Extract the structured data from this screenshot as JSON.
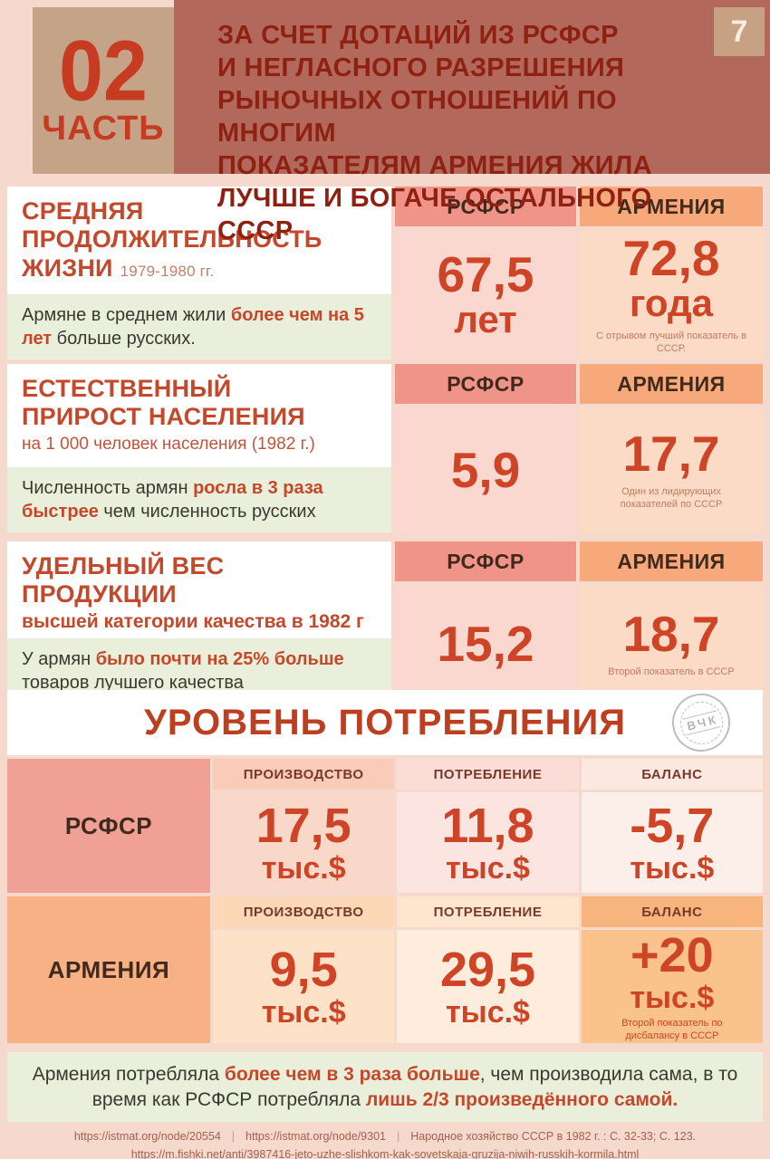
{
  "colors": {
    "page_bg": "#f4d9cc",
    "header_bg": "#b2695c",
    "header_text": "#8e2112",
    "tan_block": "#c5a387",
    "accent_red": "#c64729",
    "value_red": "#ce4426",
    "note_bg": "#e9efda",
    "rsfsr_header_bg": "#f0948a",
    "armenia_header_bg": "#f7a97c"
  },
  "header": {
    "part_number": "02",
    "part_label": "ЧАСТЬ",
    "page_number": "7",
    "title_lines": [
      "ЗА СЧЕТ ДОТАЦИЙ ИЗ РСФСР",
      "И НЕГЛАСНОГО РАЗРЕШЕНИЯ",
      "РЫНОЧНЫХ ОТНОШЕНИЙ ПО МНОГИМ",
      "ПОКАЗАТЕЛЯМ АРМЕНИЯ ЖИЛА",
      "ЛУЧШЕ И БОГАЧЕ ОСТАЛЬНОГО СССР"
    ]
  },
  "sections": [
    {
      "title_lines": [
        "СРЕДНЯЯ",
        "ПРОДОЛЖИТЕЛЬНОСТЬ",
        "ЖИЗНИ"
      ],
      "subtitle": "1979-1980 гг.",
      "note": [
        {
          "t": "Армяне в среднем жили ",
          "b": false
        },
        {
          "t": "более чем на 5 лет",
          "b": true
        },
        {
          "t": " больше русских.",
          "b": false
        }
      ],
      "rsfsr_label": "РСФСР",
      "armenia_label": "АРМЕНИЯ",
      "rsfsr_value": "67,5",
      "rsfsr_unit": "лет",
      "armenia_value": "72,8",
      "armenia_unit": "года",
      "armenia_caption": "С отрывом лучший показатель в СССР."
    },
    {
      "title_lines": [
        "ЕСТЕСТВЕННЫЙ",
        "ПРИРОСТ НАСЕЛЕНИЯ"
      ],
      "subtitle": "на 1 000 человек населения (1982 г.)",
      "note": [
        {
          "t": "Численность армян ",
          "b": false
        },
        {
          "t": "росла в 3 раза быстрее",
          "b": true
        },
        {
          "t": " чем численность русских",
          "b": false
        }
      ],
      "rsfsr_label": "РСФСР",
      "armenia_label": "АРМЕНИЯ",
      "rsfsr_value": "5,9",
      "armenia_value": "17,7",
      "armenia_caption": "Один из лидирующих показателей по СССР"
    },
    {
      "title_lines": [
        "УДЕЛЬНЫЙ ВЕС ПРОДУКЦИИ"
      ],
      "subtitle": "высшей категории качества в 1982 г",
      "note": [
        {
          "t": "У армян ",
          "b": false
        },
        {
          "t": "было почти на 25% больше",
          "b": true
        },
        {
          "t": " товаров лучшего качества",
          "b": false
        }
      ],
      "rsfsr_label": "РСФСР",
      "armenia_label": "АРМЕНИЯ",
      "rsfsr_value": "15,2",
      "armenia_value": "18,7",
      "armenia_caption": "Второй показатель в СССР"
    }
  ],
  "consumption": {
    "title": "УРОВЕНЬ ПОТРЕБЛЕНИЯ",
    "stamp_text": "ВЧК",
    "col_headers": [
      "ПРОИЗВОДСТВО",
      "ПОТРЕБЛЕНИЕ",
      "БАЛАНС"
    ],
    "rows": [
      {
        "label": "РСФСР",
        "values": [
          "17,5",
          "11,8",
          "-5,7"
        ],
        "unit": "тыс.$"
      },
      {
        "label": "АРМЕНИЯ",
        "values": [
          "9,5",
          "29,5",
          "+20"
        ],
        "unit": "тыс.$",
        "caption": "Второй показатель по дисбалансу в СССР"
      }
    ]
  },
  "bottom_note": [
    {
      "t": "Армения потребляла ",
      "b": false
    },
    {
      "t": "более чем в 3 раза больше",
      "b": true
    },
    {
      "t": ", чем производила сама, в то время как РСФСР потребляла ",
      "b": false
    },
    {
      "t": "лишь 2/3 произведённого самой.",
      "b": true
    }
  ],
  "footer": {
    "link1": "https://istmat.org/node/20554",
    "link2": "https://istmat.org/node/9301",
    "sep": "|",
    "source": "Народное хозяйство СССР в 1982 г. : С. 32-33; С. 123.",
    "link3": "https://m.fishki.net/anti/3987416-jeto-uzhe-slishkom-kak-sovetskaja-gruzija-niwih-russkih-kormila.html"
  },
  "chart_data": [
    {
      "type": "table",
      "title": "Средняя продолжительность жизни, 1979-1980 гг.",
      "categories": [
        "РСФСР",
        "АРМЕНИЯ"
      ],
      "values": [
        67.5,
        72.8
      ],
      "ylabel": "лет"
    },
    {
      "type": "table",
      "title": "Естественный прирост населения на 1 000 человек населения (1982 г.)",
      "categories": [
        "РСФСР",
        "АРМЕНИЯ"
      ],
      "values": [
        5.9,
        17.7
      ]
    },
    {
      "type": "table",
      "title": "Удельный вес продукции высшей категории качества в 1982 г",
      "categories": [
        "РСФСР",
        "АРМЕНИЯ"
      ],
      "values": [
        15.2,
        18.7
      ]
    },
    {
      "type": "table",
      "title": "Уровень потребления (тыс.$)",
      "categories": [
        "ПРОИЗВОДСТВО",
        "ПОТРЕБЛЕНИЕ",
        "БАЛАНС"
      ],
      "series": [
        {
          "name": "РСФСР",
          "values": [
            17.5,
            11.8,
            -5.7
          ]
        },
        {
          "name": "АРМЕНИЯ",
          "values": [
            9.5,
            29.5,
            20
          ]
        }
      ]
    }
  ]
}
